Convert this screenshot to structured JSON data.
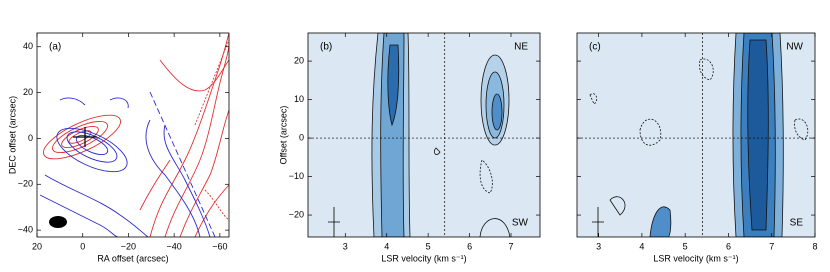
{
  "chart_data": [
    {
      "type": "contour",
      "panel_label": "(a)",
      "xlabel": "RA offset (arcsec)",
      "ylabel": "DEC offset (arcsec)",
      "xlim": [
        20,
        -64
      ],
      "ylim": [
        -43,
        46
      ],
      "xticks": [
        20,
        0,
        {
          "value": -20,
          "label": "−20"
        },
        {
          "value": -40,
          "label": "−40"
        },
        {
          "value": -60,
          "label": "−60"
        }
      ],
      "yticks": [
        {
          "value": -40,
          "label": "−40"
        },
        {
          "value": -20,
          "label": "−20"
        },
        0,
        20,
        40
      ]
    },
    {
      "type": "contour",
      "panel_label": "(b)",
      "xlabel": "LSR velocity (km s⁻¹)",
      "ylabel": "Offset (arcsec)",
      "corner_top": "NE",
      "corner_bottom": "SW",
      "xlim": [
        2.1,
        7.7
      ],
      "ylim": [
        -25.7,
        27.3
      ],
      "xticks": [
        3,
        4,
        5,
        6,
        7
      ],
      "yticks": [
        {
          "value": -20,
          "label": "−20"
        },
        {
          "value": -10,
          "label": "−10"
        },
        0,
        10,
        20
      ],
      "vline": 5.4,
      "hline": 0
    },
    {
      "type": "contour",
      "panel_label": "(c)",
      "xlabel": "LSR velocity (km s⁻¹)",
      "corner_top": "NW",
      "corner_bottom": "SE",
      "xlim": [
        2.5,
        8
      ],
      "ylim": [
        -25.7,
        27.3
      ],
      "xticks": [
        3,
        4,
        5,
        6,
        7,
        8
      ],
      "yticks": [
        -20,
        -10,
        0,
        10,
        20
      ],
      "vline": 5.4,
      "hline": 0
    }
  ]
}
